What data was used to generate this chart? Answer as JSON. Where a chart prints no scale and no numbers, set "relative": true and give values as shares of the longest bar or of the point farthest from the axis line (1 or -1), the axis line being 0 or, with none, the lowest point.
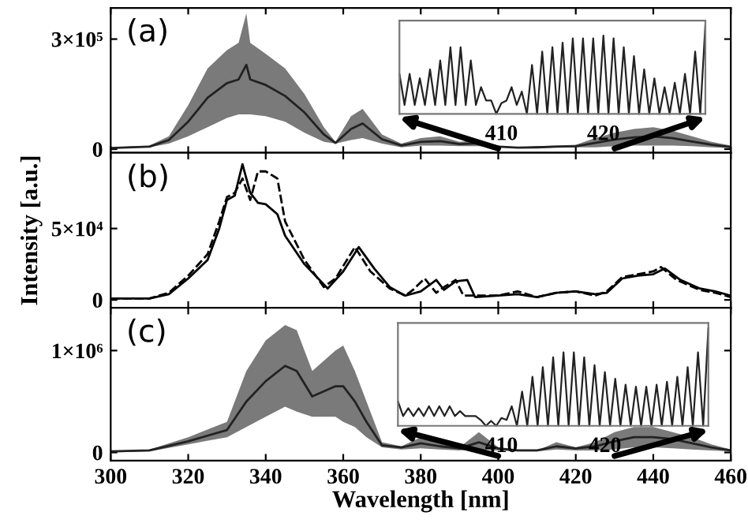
{
  "chart_data": [
    {
      "type": "line",
      "annotations": [
        "(a)"
      ],
      "xlim": [
        300,
        460
      ],
      "xticks": [
        300,
        320,
        340,
        360,
        380,
        400,
        420,
        440,
        460
      ],
      "ylim": [
        -10000,
        385000
      ],
      "yticks": [
        0,
        {
          "value": 300000,
          "label": "3×10⁵"
        }
      ],
      "tick_labels": "y",
      "grid": false,
      "x": [
        300,
        310,
        315,
        320,
        325,
        330,
        333,
        335,
        336,
        340,
        345,
        350,
        355,
        358,
        362,
        365,
        370,
        375,
        380,
        385,
        390,
        395,
        400,
        405,
        410,
        415,
        420,
        425,
        430,
        435,
        440,
        445,
        450,
        455,
        460
      ],
      "series": [
        {
          "color": "#222222",
          "values": [
            3000,
            7000,
            25000,
            75000,
            140000,
            180000,
            190000,
            230000,
            190000,
            175000,
            145000,
            100000,
            40000,
            17000,
            55000,
            70000,
            27000,
            10000,
            20000,
            22000,
            14000,
            16000,
            7000,
            4000,
            5000,
            7000,
            8000,
            17000,
            26000,
            32000,
            35000,
            30000,
            21000,
            12000,
            6000
          ],
          "lower": [
            2000,
            5000,
            15000,
            35000,
            60000,
            85000,
            95000,
            95000,
            95000,
            90000,
            75000,
            45000,
            20000,
            15000,
            25000,
            30000,
            15000,
            5000,
            10000,
            10000,
            8000,
            8000,
            5000,
            3000,
            3000,
            5000,
            5000,
            5000,
            8000,
            10000,
            10000,
            10000,
            8000,
            5000,
            3000
          ],
          "upper": [
            5000,
            10000,
            35000,
            120000,
            220000,
            270000,
            290000,
            370000,
            290000,
            260000,
            220000,
            150000,
            60000,
            20000,
            90000,
            110000,
            40000,
            15000,
            30000,
            35000,
            20000,
            25000,
            10000,
            5000,
            8000,
            10000,
            12000,
            30000,
            45000,
            55000,
            60000,
            50000,
            35000,
            20000,
            10000
          ]
        }
      ]
    },
    {
      "type": "line",
      "relative": true,
      "xlim": [
        400,
        430
      ],
      "xticks": [
        410,
        420
      ],
      "tick_labels": "x",
      "x": [
        400,
        400.5,
        401,
        401.5,
        402,
        402.5,
        403,
        403.5,
        404,
        404.5,
        405,
        405.5,
        406,
        406.5,
        407,
        407.5,
        408,
        408.5,
        409,
        409.5,
        410,
        410.5,
        411,
        411.5,
        412,
        412.5,
        413,
        413.5,
        414,
        414.5,
        415,
        415.5,
        416,
        416.5,
        417,
        417.5,
        418,
        418.5,
        419,
        419.5,
        420,
        420.5,
        421,
        421.5,
        422,
        422.5,
        423,
        423.5,
        424,
        424.5,
        425,
        425.5,
        426,
        426.5,
        427,
        427.5,
        428,
        428.5,
        429,
        429.5,
        430
      ],
      "series": [
        {
          "color": "#222222",
          "values": [
            0.45,
            0.1,
            0.45,
            0.1,
            0.4,
            0.1,
            0.5,
            0.1,
            0.6,
            0.1,
            0.75,
            0.1,
            0.75,
            0.1,
            0.6,
            0.1,
            0.3,
            0.15,
            0.15,
            0,
            0.12,
            0.15,
            0.3,
            0.1,
            0.25,
            0,
            0.55,
            0,
            0.7,
            0,
            0.75,
            0,
            0.8,
            0,
            0.85,
            0,
            0.85,
            0,
            0.85,
            0,
            0.88,
            0,
            0.85,
            0,
            0.75,
            0,
            0.65,
            0,
            0.5,
            0,
            0.4,
            0,
            0.3,
            0,
            0.35,
            0,
            0.45,
            0,
            0.7,
            0,
            1.0
          ]
        }
      ]
    },
    {
      "type": "line",
      "annotations": [
        "(b)"
      ],
      "ylabel": "Intensity [a.u.]",
      "xlim": [
        300,
        460
      ],
      "xticks": [
        300,
        320,
        340,
        360,
        380,
        400,
        420,
        440,
        460
      ],
      "ylim": [
        -5500,
        103000
      ],
      "yticks": [
        0,
        {
          "value": 50000,
          "label": "5×10⁴"
        }
      ],
      "tick_labels": "y",
      "grid": false,
      "series": [
        {
          "color": "#000000",
          "line_style": "solid",
          "x": [
            300,
            310,
            315,
            320,
            325,
            328,
            330,
            332,
            334,
            336,
            338,
            340,
            343,
            345,
            350,
            356,
            360,
            364,
            368,
            372,
            376,
            380,
            384,
            386,
            389,
            392,
            394,
            400,
            405,
            410,
            415,
            420,
            425,
            428,
            432,
            436,
            440,
            443,
            447,
            452,
            456,
            460
          ],
          "values": [
            1000,
            1000,
            4000,
            15000,
            28000,
            50000,
            70000,
            73000,
            95000,
            75000,
            68000,
            67000,
            60000,
            45000,
            25000,
            8000,
            20000,
            37000,
            22000,
            9000,
            3000,
            6000,
            14000,
            7000,
            13000,
            14000,
            2000,
            3000,
            4000,
            2000,
            5000,
            6000,
            4000,
            5000,
            15000,
            17000,
            18000,
            22000,
            14000,
            8000,
            6000,
            3000
          ]
        },
        {
          "color": "#000000",
          "line_style": "dashed",
          "x": [
            300,
            310,
            315,
            320,
            325,
            328,
            330,
            332,
            334,
            336,
            338,
            340,
            343,
            345,
            350,
            355,
            358,
            363,
            367,
            372,
            376,
            378,
            381,
            384,
            386,
            389,
            391,
            400,
            405,
            410,
            415,
            420,
            425,
            428,
            432,
            436,
            440,
            442,
            446,
            452,
            456,
            460
          ],
          "values": [
            1000,
            1000,
            5000,
            17000,
            32000,
            55000,
            72000,
            75000,
            85000,
            70000,
            90000,
            90000,
            85000,
            55000,
            28000,
            9000,
            15000,
            37000,
            20000,
            8000,
            3000,
            7000,
            15000,
            5000,
            9000,
            14000,
            3000,
            3000,
            6000,
            2000,
            5000,
            6000,
            3000,
            6000,
            16000,
            18000,
            20000,
            23000,
            14000,
            7000,
            5000,
            2000
          ]
        }
      ]
    },
    {
      "type": "line",
      "annotations": [
        "(c)"
      ],
      "xlabel": "Wavelength [nm]",
      "xlim": [
        300,
        460
      ],
      "xticks": [
        300,
        320,
        340,
        360,
        380,
        400,
        420,
        440,
        460
      ],
      "ylim": [
        -80000,
        1420000
      ],
      "yticks": [
        0,
        {
          "value": 1000000,
          "label": "1×10⁶"
        }
      ],
      "grid": false,
      "x": [
        300,
        310,
        320,
        330,
        335,
        340,
        345,
        348,
        352,
        355,
        358,
        360,
        363,
        366,
        370,
        375,
        380,
        385,
        390,
        395,
        400,
        405,
        410,
        415,
        420,
        425,
        430,
        435,
        440,
        445,
        450,
        455,
        460
      ],
      "series": [
        {
          "color": "#222222",
          "values": [
            10000,
            20000,
            110000,
            220000,
            500000,
            700000,
            850000,
            800000,
            550000,
            600000,
            650000,
            650000,
            500000,
            300000,
            70000,
            50000,
            90000,
            60000,
            40000,
            100000,
            40000,
            20000,
            20000,
            60000,
            40000,
            60000,
            110000,
            150000,
            150000,
            130000,
            90000,
            50000,
            20000
          ],
          "lower": [
            0,
            10000,
            80000,
            150000,
            250000,
            350000,
            450000,
            400000,
            350000,
            350000,
            350000,
            300000,
            250000,
            150000,
            50000,
            30000,
            40000,
            30000,
            20000,
            30000,
            20000,
            10000,
            10000,
            30000,
            20000,
            20000,
            30000,
            50000,
            50000,
            40000,
            30000,
            20000,
            10000
          ],
          "upper": [
            10000,
            30000,
            150000,
            300000,
            800000,
            1100000,
            1250000,
            1200000,
            800000,
            900000,
            1000000,
            1050000,
            800000,
            500000,
            100000,
            60000,
            150000,
            100000,
            50000,
            200000,
            50000,
            20000,
            20000,
            100000,
            50000,
            100000,
            200000,
            250000,
            250000,
            200000,
            150000,
            80000,
            30000
          ]
        }
      ]
    },
    {
      "type": "line",
      "relative": true,
      "xlim": [
        400,
        430
      ],
      "xticks": [
        410,
        420
      ],
      "tick_labels": "x",
      "x": [
        400,
        400.5,
        401,
        401.5,
        402,
        402.5,
        403,
        403.5,
        404,
        404.5,
        405,
        405.5,
        406,
        406.5,
        407,
        407.5,
        408,
        408.5,
        409,
        409.5,
        410,
        410.5,
        411,
        411.5,
        412,
        412.5,
        413,
        413.5,
        414,
        414.5,
        415,
        415.5,
        416,
        416.5,
        417,
        417.5,
        418,
        418.5,
        419,
        419.5,
        420,
        420.5,
        421,
        421.5,
        422,
        422.5,
        423,
        423.5,
        424,
        424.5,
        425,
        425.5,
        426,
        426.5,
        427,
        427.5,
        428,
        428.5,
        429,
        429.5,
        430
      ],
      "series": [
        {
          "color": "#222222",
          "values": [
            0.25,
            0.1,
            0.18,
            0.1,
            0.18,
            0.1,
            0.2,
            0.1,
            0.2,
            0.1,
            0.2,
            0.1,
            0.15,
            0.1,
            0.1,
            0.1,
            0.06,
            0,
            0.05,
            0,
            0.08,
            0.06,
            0.2,
            0,
            0.35,
            0,
            0.5,
            0,
            0.6,
            0,
            0.7,
            0,
            0.75,
            0,
            0.75,
            0,
            0.7,
            0,
            0.62,
            0,
            0.55,
            0,
            0.48,
            0,
            0.42,
            0,
            0.4,
            0,
            0.4,
            0,
            0.42,
            0,
            0.45,
            0,
            0.5,
            0,
            0.6,
            0,
            0.75,
            0,
            1.0
          ]
        }
      ]
    }
  ]
}
